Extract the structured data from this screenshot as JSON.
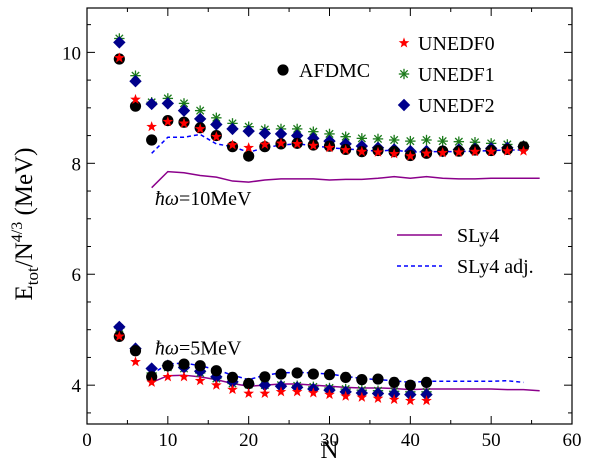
{
  "chart_data": {
    "type": "scatter",
    "xlabel": "N",
    "ylabel_main": "E",
    "ylabel_sub": "tot",
    "ylabel_mid": "/N",
    "ylabel_sup": "4/3",
    "ylabel_unit": " (MeV)",
    "xlim": [
      0,
      60
    ],
    "ylim": [
      3.3,
      10.8
    ],
    "xticks": [
      0,
      10,
      20,
      30,
      40,
      50,
      60
    ],
    "xtick_labels": [
      "0",
      "10",
      "20",
      "30",
      "40",
      "50",
      "60"
    ],
    "yticks": [
      4,
      6,
      8,
      10
    ],
    "ytick_labels": [
      "4",
      "6",
      "8",
      "10"
    ],
    "grid": false,
    "annotations": [
      {
        "hbar": "ħω",
        "rest": "=10MeV",
        "x": 8.4,
        "y": 7.25
      },
      {
        "hbar": "ħω",
        "rest": "=5MeV",
        "x": 8.4,
        "y": 4.55
      }
    ],
    "legend_top": [
      {
        "series": "AFDMC",
        "label": "AFDMC"
      },
      {
        "series": "UNEDF0",
        "label": "UNEDF0"
      },
      {
        "series": "UNEDF1",
        "label": "UNEDF1"
      },
      {
        "series": "UNEDF2",
        "label": "UNEDF2"
      }
    ],
    "legend_bottom": [
      {
        "series": "SLy4",
        "label": "SLy4"
      },
      {
        "series": "SLy4 adj.",
        "label": "SLy4 adj."
      }
    ],
    "series": [
      {
        "name": "AFDMC",
        "marker": "circle",
        "color": "#000000",
        "groups": [
          {
            "x": [
              4,
              6,
              8,
              10,
              12,
              14,
              16,
              18,
              20,
              22,
              24,
              26,
              28,
              30,
              32,
              34,
              36,
              38,
              40,
              42,
              44,
              46,
              48,
              50,
              52,
              54
            ],
            "y": [
              9.88,
              9.03,
              8.42,
              8.77,
              8.74,
              8.64,
              8.5,
              8.3,
              8.13,
              8.3,
              8.35,
              8.36,
              8.33,
              8.31,
              8.25,
              8.21,
              8.23,
              8.21,
              8.14,
              8.18,
              8.22,
              8.22,
              8.24,
              8.23,
              8.25,
              8.3
            ]
          },
          {
            "x": [
              4,
              6,
              8,
              10,
              12,
              14,
              16,
              18,
              20,
              22,
              24,
              26,
              28,
              30,
              32,
              34,
              36,
              38,
              40,
              42
            ],
            "y": [
              4.88,
              4.62,
              4.15,
              4.35,
              4.38,
              4.35,
              4.26,
              4.14,
              4.03,
              4.15,
              4.2,
              4.22,
              4.2,
              4.19,
              4.14,
              4.1,
              4.11,
              4.05,
              4.0,
              4.05
            ]
          }
        ]
      },
      {
        "name": "UNEDF0",
        "marker": "star",
        "color": "#ff0000",
        "groups": [
          {
            "x": [
              4,
              6,
              8,
              10,
              12,
              14,
              16,
              18,
              20,
              22,
              24,
              26,
              28,
              30,
              32,
              34,
              36,
              38,
              40,
              42,
              44,
              46,
              48,
              50,
              52,
              54
            ],
            "y": [
              9.9,
              9.15,
              8.66,
              8.75,
              8.72,
              8.62,
              8.48,
              8.33,
              8.28,
              8.34,
              8.36,
              8.35,
              8.32,
              8.28,
              8.24,
              8.21,
              8.2,
              8.17,
              8.13,
              8.18,
              8.19,
              8.2,
              8.21,
              8.21,
              8.22,
              8.22
            ]
          },
          {
            "x": [
              4,
              6,
              8,
              10,
              12,
              14,
              16,
              18,
              20,
              22,
              24,
              26,
              28,
              30,
              32,
              34,
              36,
              38,
              40,
              42
            ],
            "y": [
              4.88,
              4.42,
              4.05,
              4.15,
              4.15,
              4.08,
              4.0,
              3.92,
              3.85,
              3.85,
              3.88,
              3.88,
              3.86,
              3.83,
              3.8,
              3.78,
              3.76,
              3.74,
              3.72,
              3.72
            ]
          }
        ]
      },
      {
        "name": "UNEDF1",
        "marker": "asterisk",
        "color": "#1a7a1a",
        "groups": [
          {
            "x": [
              4,
              6,
              8,
              10,
              12,
              14,
              16,
              18,
              20,
              22,
              24,
              26,
              28,
              30,
              32,
              34,
              36,
              38,
              40,
              42,
              44,
              46,
              48,
              50,
              52,
              54
            ],
            "y": [
              10.25,
              9.58,
              9.1,
              9.17,
              9.08,
              8.95,
              8.82,
              8.72,
              8.66,
              8.61,
              8.62,
              8.62,
              8.57,
              8.53,
              8.48,
              8.45,
              8.44,
              8.42,
              8.4,
              8.42,
              8.4,
              8.39,
              8.38,
              8.36,
              8.34,
              8.32
            ]
          },
          {
            "x": [
              4,
              6,
              8,
              10,
              12,
              14,
              16,
              18,
              20,
              22,
              24,
              26,
              28,
              30,
              32,
              34,
              36,
              38,
              40,
              42
            ],
            "y": [
              5.03,
              4.63,
              4.22,
              4.32,
              4.3,
              4.22,
              4.12,
              4.03,
              4.01,
              4.0,
              4.0,
              3.99,
              3.97,
              3.95,
              3.93,
              3.91,
              3.9,
              3.89,
              3.88,
              3.88
            ]
          }
        ]
      },
      {
        "name": "UNEDF2",
        "marker": "diamond",
        "color": "#00008b",
        "groups": [
          {
            "x": [
              4,
              6,
              8,
              10,
              12,
              14,
              16,
              18,
              20,
              22,
              24,
              26,
              28,
              30,
              32,
              34,
              36,
              38,
              40,
              42,
              44,
              46,
              48,
              50,
              52,
              54
            ],
            "y": [
              10.18,
              9.48,
              9.07,
              9.08,
              8.95,
              8.8,
              8.7,
              8.62,
              8.58,
              8.54,
              8.53,
              8.5,
              8.45,
              8.4,
              8.35,
              8.31,
              8.28,
              8.25,
              8.22,
              8.22,
              8.22,
              8.25,
              8.26,
              8.27,
              8.28,
              8.3
            ]
          },
          {
            "x": [
              4,
              6,
              8,
              10,
              12,
              14,
              16,
              18,
              20,
              22,
              24,
              26,
              28,
              30,
              32,
              34,
              36,
              38,
              40,
              42
            ],
            "y": [
              5.05,
              4.66,
              4.3,
              4.35,
              4.32,
              4.25,
              4.15,
              4.06,
              4.02,
              4.0,
              3.98,
              3.96,
              3.93,
              3.91,
              3.88,
              3.86,
              3.85,
              3.84,
              3.83,
              3.83
            ]
          }
        ]
      },
      {
        "name": "SLy4",
        "line": "solid",
        "color": "#8b008b",
        "groups": [
          {
            "x": [
              8,
              10,
              12,
              14,
              16,
              18,
              20,
              22,
              24,
              26,
              28,
              30,
              32,
              34,
              36,
              38,
              40,
              42,
              44,
              46,
              48,
              50,
              52,
              54,
              56
            ],
            "y": [
              7.56,
              7.85,
              7.83,
              7.78,
              7.75,
              7.68,
              7.66,
              7.7,
              7.72,
              7.72,
              7.72,
              7.7,
              7.71,
              7.71,
              7.73,
              7.76,
              7.73,
              7.76,
              7.73,
              7.72,
              7.72,
              7.73,
              7.73,
              7.73,
              7.73
            ]
          },
          {
            "x": [
              8,
              10,
              12,
              14,
              16,
              18,
              20,
              22,
              24,
              26,
              28,
              30,
              32,
              34,
              36,
              38,
              40,
              42,
              44,
              46,
              48,
              50,
              52,
              54,
              56
            ],
            "y": [
              4.05,
              4.17,
              4.18,
              4.15,
              4.1,
              4.03,
              3.98,
              4.0,
              4.02,
              4.02,
              4.0,
              3.98,
              3.96,
              3.95,
              3.95,
              3.94,
              3.92,
              3.93,
              3.93,
              3.93,
              3.93,
              3.93,
              3.92,
              3.92,
              3.9
            ]
          }
        ]
      },
      {
        "name": "SLy4 adj.",
        "line": "dashed",
        "color": "#0000ff",
        "groups": [
          {
            "x": [
              8,
              10,
              12,
              14,
              16,
              18,
              20,
              22,
              24,
              26,
              28,
              30,
              32,
              34,
              36,
              38,
              40,
              42,
              44,
              46,
              48,
              50,
              52,
              54
            ],
            "y": [
              8.18,
              8.47,
              8.47,
              8.52,
              8.35,
              8.3,
              8.2,
              8.28,
              8.33,
              8.35,
              8.32,
              8.28,
              8.26,
              8.24,
              8.22,
              8.24,
              8.2,
              8.21,
              8.21,
              8.21,
              8.22,
              8.23,
              8.24,
              8.24
            ]
          },
          {
            "x": [
              8,
              10,
              12,
              14,
              16,
              18,
              20,
              22,
              24,
              26,
              28,
              30,
              32,
              34,
              36,
              38,
              40,
              42,
              44,
              46,
              48,
              50,
              52,
              54
            ],
            "y": [
              4.2,
              4.38,
              4.4,
              4.35,
              4.28,
              4.18,
              4.1,
              4.18,
              4.22,
              4.23,
              4.22,
              4.2,
              4.16,
              4.12,
              4.1,
              4.08,
              4.05,
              4.07,
              4.07,
              4.07,
              4.07,
              4.07,
              4.08,
              4.05
            ]
          }
        ]
      }
    ]
  }
}
